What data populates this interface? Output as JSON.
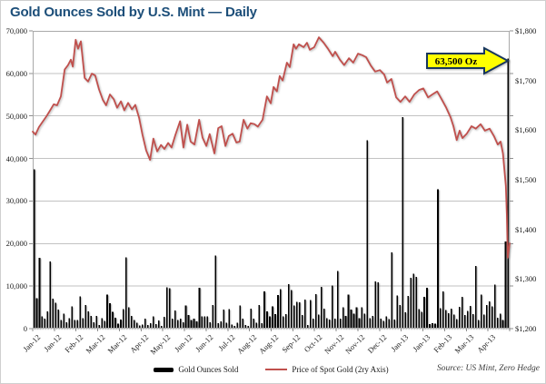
{
  "title": "Gold Ounces Sold by U.S. Mint — Daily",
  "source_note": "Source: US Mint, Zero Hedge",
  "annotation": {
    "label": "63,500 Oz",
    "fill": "#ffff00",
    "border": "#17365d"
  },
  "legend": [
    {
      "label": "Gold Ounces Sold",
      "type": "bar",
      "color": "#000000"
    },
    {
      "label": "Price of Spot Gold (2ry Axis)",
      "type": "line",
      "color": "#c0504d"
    }
  ],
  "colors": {
    "title": "#1c4e79",
    "bar": "#000000",
    "line": "#c0504d",
    "grid": "#c2c2c2"
  },
  "chart_data": {
    "type": "combo",
    "title": "Gold Ounces Sold by U.S. Mint — Daily",
    "grid": true,
    "x_tick_labels": [
      "Jan-12",
      "Jan-12",
      "Feb-12",
      "Mar-12",
      "Mar-12",
      "Apr-12",
      "May-12",
      "Jun-12",
      "Jun-12",
      "Jul-12",
      "Aug-12",
      "Aug-12",
      "Sep-12",
      "Oct-12",
      "Nov-12",
      "Nov-12",
      "Dec-12",
      "Jan-13",
      "Jan-13",
      "Feb-13",
      "Mar-13",
      "Apr-13"
    ],
    "left_axis": {
      "min": 0,
      "max": 70000,
      "step": 10000,
      "tick_labels_top_down": [
        "70,000",
        "60,000",
        "50,000",
        "40,000",
        "30,000",
        "20,000",
        "10,000",
        "0"
      ]
    },
    "right_axis": {
      "min": 1200,
      "max": 1800,
      "step": 100,
      "tick_labels_top_down": [
        "$1,800",
        "$1,700",
        "$1,600",
        "$1,500",
        "$1,400",
        "$1,300",
        "$1,200"
      ]
    },
    "series": [
      {
        "name": "Gold Ounces Sold",
        "type": "bar",
        "axis": "left",
        "values": [
          37500,
          7200,
          16700,
          2900,
          2300,
          4100,
          15800,
          7000,
          6100,
          4500,
          2000,
          3500,
          1500,
          2500,
          5200,
          2000,
          2000,
          7600,
          2500,
          5500,
          4100,
          3000,
          1500,
          3000,
          900,
          2500,
          1800,
          8000,
          6000,
          4000,
          2600,
          1200,
          2100,
          4600,
          16800,
          5000,
          3000,
          2000,
          1400,
          700,
          1000,
          2400,
          900,
          1300,
          2900,
          1100,
          1900,
          600,
          2800,
          9700,
          9500,
          2400,
          4300,
          2000,
          2400,
          1500,
          5400,
          3200,
          2000,
          2400,
          1700,
          9600,
          2900,
          2900,
          2900,
          1500,
          5500,
          17200,
          1300,
          1700,
          4500,
          1400,
          4600,
          1000,
          600,
          1400,
          5400,
          2400,
          900,
          600,
          4700,
          2400,
          1400,
          5500,
          1300,
          8700,
          4100,
          2900,
          5200,
          3400,
          7900,
          9300,
          2900,
          3400,
          10500,
          9100,
          5400,
          6300,
          6200,
          3200,
          6800,
          900,
          6700,
          2300,
          8100,
          3300,
          9800,
          4700,
          2500,
          2100,
          10100,
          2300,
          13600,
          2300,
          5000,
          3000,
          8000,
          4500,
          3500,
          5000,
          2500,
          5000,
          3500,
          44300,
          2500,
          3000,
          11100,
          10900,
          2300,
          1800,
          2900,
          2200,
          17900,
          2100,
          7800,
          5600,
          49700,
          3800,
          7700,
          11900,
          12900,
          12200,
          4600,
          4000,
          7500,
          9600,
          1100,
          1300,
          1200,
          32800,
          4800,
          8700,
          4400,
          3600,
          4700,
          3300,
          2200,
          5100,
          7500,
          3200,
          4200,
          5300,
          3400,
          14700,
          2000,
          8000,
          3300,
          5500,
          6400,
          5200,
          10300,
          2600,
          3500,
          2000,
          20500,
          63500
        ]
      },
      {
        "name": "Price of Spot Gold (2ry Axis)",
        "type": "line",
        "axis": "right",
        "points_permille_price": [
          [
            0,
            1597
          ],
          [
            6,
            1591
          ],
          [
            13,
            1606
          ],
          [
            21,
            1617
          ],
          [
            29,
            1628
          ],
          [
            36,
            1639
          ],
          [
            44,
            1652
          ],
          [
            51,
            1650
          ],
          [
            59,
            1668
          ],
          [
            67,
            1722
          ],
          [
            74,
            1731
          ],
          [
            80,
            1742
          ],
          [
            84,
            1728
          ],
          [
            90,
            1782
          ],
          [
            95,
            1764
          ],
          [
            101,
            1779
          ],
          [
            109,
            1705
          ],
          [
            116,
            1698
          ],
          [
            124,
            1714
          ],
          [
            131,
            1710
          ],
          [
            139,
            1682
          ],
          [
            147,
            1661
          ],
          [
            154,
            1650
          ],
          [
            162,
            1672
          ],
          [
            170,
            1662
          ],
          [
            177,
            1645
          ],
          [
            185,
            1658
          ],
          [
            192,
            1640
          ],
          [
            200,
            1655
          ],
          [
            208,
            1642
          ],
          [
            215,
            1651
          ],
          [
            223,
            1625
          ],
          [
            230,
            1591
          ],
          [
            238,
            1559
          ],
          [
            246,
            1540
          ],
          [
            253,
            1583
          ],
          [
            261,
            1557
          ],
          [
            269,
            1570
          ],
          [
            276,
            1562
          ],
          [
            284,
            1574
          ],
          [
            291,
            1565
          ],
          [
            299,
            1590
          ],
          [
            309,
            1618
          ],
          [
            316,
            1565
          ],
          [
            324,
            1611
          ],
          [
            331,
            1577
          ],
          [
            339,
            1571
          ],
          [
            349,
            1621
          ],
          [
            356,
            1585
          ],
          [
            364,
            1568
          ],
          [
            371,
            1592
          ],
          [
            381,
            1553
          ],
          [
            389,
            1604
          ],
          [
            396,
            1608
          ],
          [
            404,
            1568
          ],
          [
            411,
            1588
          ],
          [
            419,
            1593
          ],
          [
            427,
            1575
          ],
          [
            434,
            1577
          ],
          [
            442,
            1621
          ],
          [
            450,
            1603
          ],
          [
            457,
            1614
          ],
          [
            465,
            1612
          ],
          [
            472,
            1607
          ],
          [
            482,
            1621
          ],
          [
            491,
            1668
          ],
          [
            499,
            1654
          ],
          [
            505,
            1687
          ],
          [
            512,
            1678
          ],
          [
            518,
            1709
          ],
          [
            524,
            1700
          ],
          [
            533,
            1736
          ],
          [
            539,
            1727
          ],
          [
            547,
            1773
          ],
          [
            552,
            1764
          ],
          [
            558,
            1773
          ],
          [
            568,
            1767
          ],
          [
            575,
            1776
          ],
          [
            581,
            1762
          ],
          [
            590,
            1767
          ],
          [
            600,
            1787
          ],
          [
            610,
            1776
          ],
          [
            619,
            1764
          ],
          [
            629,
            1749
          ],
          [
            634,
            1758
          ],
          [
            644,
            1742
          ],
          [
            653,
            1731
          ],
          [
            663,
            1745
          ],
          [
            672,
            1736
          ],
          [
            682,
            1754
          ],
          [
            691,
            1751
          ],
          [
            699,
            1747
          ],
          [
            709,
            1730
          ],
          [
            718,
            1718
          ],
          [
            728,
            1721
          ],
          [
            737,
            1712
          ],
          [
            743,
            1696
          ],
          [
            752,
            1703
          ],
          [
            762,
            1666
          ],
          [
            771,
            1657
          ],
          [
            781,
            1668
          ],
          [
            790,
            1657
          ],
          [
            800,
            1672
          ],
          [
            810,
            1681
          ],
          [
            819,
            1684
          ],
          [
            829,
            1666
          ],
          [
            838,
            1672
          ],
          [
            848,
            1678
          ],
          [
            857,
            1663
          ],
          [
            867,
            1645
          ],
          [
            876,
            1626
          ],
          [
            882,
            1608
          ],
          [
            889,
            1580
          ],
          [
            895,
            1599
          ],
          [
            901,
            1584
          ],
          [
            910,
            1593
          ],
          [
            920,
            1608
          ],
          [
            929,
            1603
          ],
          [
            939,
            1612
          ],
          [
            948,
            1599
          ],
          [
            958,
            1603
          ],
          [
            967,
            1588
          ],
          [
            975,
            1571
          ],
          [
            981,
            1577
          ],
          [
            986,
            1553
          ],
          [
            992,
            1488
          ],
          [
            994,
            1430
          ],
          [
            996,
            1343
          ],
          [
            1000,
            1372
          ]
        ]
      }
    ]
  }
}
